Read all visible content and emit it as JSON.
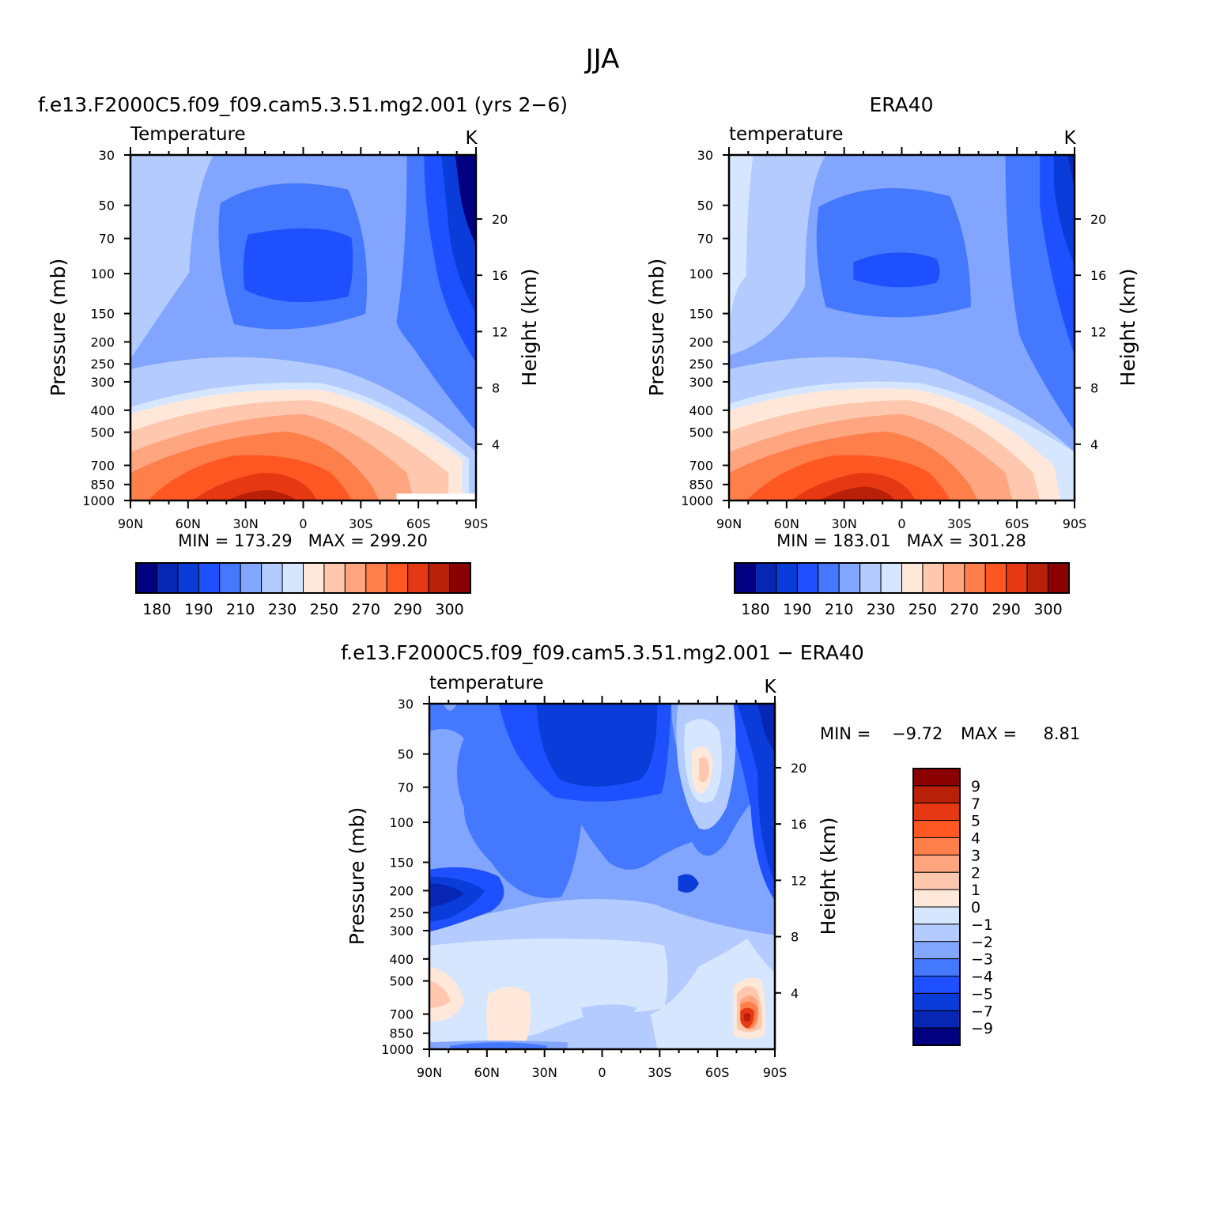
{
  "figure_title": "JJA",
  "colors": {
    "abs": [
      "#000080",
      "#0626b3",
      "#0a3cd9",
      "#1e50ff",
      "#4478ff",
      "#82a6ff",
      "#b3cbff",
      "#d6e6ff",
      "#ffe8d9",
      "#ffc7ad",
      "#ffa580",
      "#ff7f4a",
      "#ff5722",
      "#e63812",
      "#b82008",
      "#8b0000"
    ],
    "diff": [
      "#000080",
      "#0626b3",
      "#0a3cd9",
      "#1e50ff",
      "#4478ff",
      "#82a6ff",
      "#b3cbff",
      "#d6e6ff",
      "#ffe8d9",
      "#ffc7ad",
      "#ffa580",
      "#ff7f4a",
      "#ff5722",
      "#e63812",
      "#b82008",
      "#8b0000"
    ]
  },
  "chart_data": [
    {
      "type": "heatmap",
      "title": "f.e13.F2000C5.f09_f09.cam5.3.51.mg2.001 (yrs 2−6)",
      "left_string": "Temperature",
      "right_string": "K",
      "ylabel": "Pressure (mb)",
      "ylabel_right": "Height (km)",
      "xticks": [
        "90N",
        "60N",
        "30N",
        "0",
        "30S",
        "60S",
        "90S"
      ],
      "yticks": [
        "30",
        "50",
        "70",
        "100",
        "150",
        "200",
        "250",
        "300",
        "400",
        "500",
        "700",
        "850",
        "1000"
      ],
      "yticks_right": [
        "20",
        "16",
        "12",
        "8",
        "4"
      ],
      "stats": "MIN = 173.29   MAX = 299.20",
      "colorbar_labels": [
        "180",
        "190",
        "210",
        "230",
        "250",
        "270",
        "290",
        "300"
      ],
      "min": 173.29,
      "max": 299.2,
      "ylog": true,
      "ylim": [
        1000,
        30
      ],
      "xlim": [
        "90N",
        "90S"
      ]
    },
    {
      "type": "heatmap",
      "title": "ERA40",
      "left_string": "temperature",
      "right_string": "K",
      "ylabel": "Pressure (mb)",
      "ylabel_right": "Height (km)",
      "xticks": [
        "90N",
        "60N",
        "30N",
        "0",
        "30S",
        "60S",
        "90S"
      ],
      "yticks": [
        "30",
        "50",
        "70",
        "100",
        "150",
        "200",
        "250",
        "300",
        "400",
        "500",
        "700",
        "850",
        "1000"
      ],
      "yticks_right": [
        "20",
        "16",
        "12",
        "8",
        "4"
      ],
      "stats": "MIN = 183.01   MAX = 301.28",
      "colorbar_labels": [
        "180",
        "190",
        "210",
        "230",
        "250",
        "270",
        "290",
        "300"
      ],
      "min": 183.01,
      "max": 301.28,
      "ylog": true,
      "ylim": [
        1000,
        30
      ],
      "xlim": [
        "90N",
        "90S"
      ]
    },
    {
      "type": "heatmap",
      "title": "f.e13.F2000C5.f09_f09.cam5.3.51.mg2.001 − ERA40",
      "left_string": "temperature",
      "right_string": "K",
      "ylabel": "Pressure (mb)",
      "ylabel_right": "Height (km)",
      "xticks": [
        "90N",
        "60N",
        "30N",
        "0",
        "30S",
        "60S",
        "90S"
      ],
      "yticks": [
        "30",
        "50",
        "70",
        "100",
        "150",
        "200",
        "250",
        "300",
        "400",
        "500",
        "700",
        "850",
        "1000"
      ],
      "yticks_right": [
        "20",
        "16",
        "12",
        "8",
        "4"
      ],
      "stats_min": "MIN =    −9.72",
      "stats_max": "MAX =     8.81",
      "colorbar_labels": [
        "9",
        "7",
        "5",
        "4",
        "3",
        "2",
        "1",
        "0",
        "−1",
        "−2",
        "−3",
        "−4",
        "−5",
        "−7",
        "−9"
      ],
      "min": -9.72,
      "max": 8.81,
      "ylog": true,
      "ylim": [
        1000,
        30
      ],
      "xlim": [
        "90N",
        "90S"
      ]
    }
  ]
}
